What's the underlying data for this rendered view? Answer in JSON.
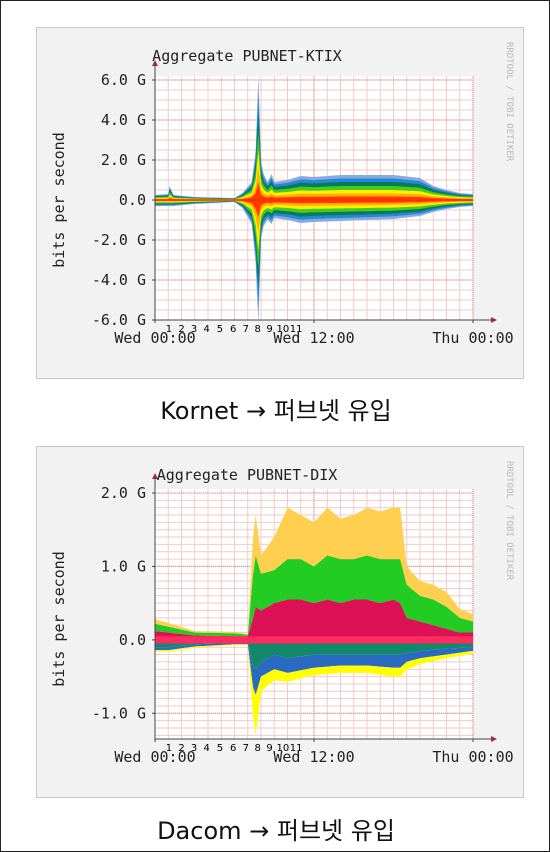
{
  "charts": [
    {
      "title": "Aggregate PUBNET-KTIX",
      "ylabel": "bits per second",
      "watermark": "RRDTOOL / TOBI OETIKER",
      "y_ticks": [
        {
          "v": 6,
          "label": "6.0 G"
        },
        {
          "v": 4,
          "label": "4.0 G"
        },
        {
          "v": 2,
          "label": "2.0 G"
        },
        {
          "v": 0,
          "label": "0.0"
        },
        {
          "v": -2,
          "label": "-2.0 G"
        },
        {
          "v": -4,
          "label": "-4.0 G"
        },
        {
          "v": -6,
          "label": "-6.0 G"
        }
      ],
      "x_ticks": [
        "Wed 00:00",
        "Wed 12:00",
        "Thu 00:00"
      ],
      "annotations": [
        "1",
        "2",
        "3",
        "4",
        "5",
        "6",
        "7",
        "8",
        "9",
        "10",
        "11"
      ],
      "caption": "Kornet → 퍼브넷 유입"
    },
    {
      "title": "Aggregate PUBNET-DIX",
      "ylabel": "bits per second",
      "watermark": "RRDTOOL / TOBI OETIKER",
      "y_ticks": [
        {
          "v": 2,
          "label": "2.0 G"
        },
        {
          "v": 1,
          "label": "1.0 G"
        },
        {
          "v": 0,
          "label": "0.0"
        },
        {
          "v": -1,
          "label": "-1.0 G"
        }
      ],
      "x_ticks": [
        "Wed 00:00",
        "Wed 12:00",
        "Thu 00:00"
      ],
      "annotations": [
        "1",
        "2",
        "3",
        "4",
        "5",
        "6",
        "7",
        "8",
        "9",
        "10",
        "11"
      ],
      "caption": "Dacom → 퍼브넷 유입"
    }
  ],
  "chart_data": [
    {
      "type": "area",
      "title": "Aggregate PUBNET-KTIX",
      "ylabel": "bits per second",
      "x_unit": "hours since Wed 00:00",
      "xlim": [
        0,
        24
      ],
      "ylim": [
        -6,
        6
      ],
      "y_unit": "G",
      "grid": true,
      "colors": [
        "#ff3a00",
        "#ffb000",
        "#ffee00",
        "#44cc22",
        "#0a7a55",
        "#2288dd",
        "#88aadd"
      ],
      "envelope": {
        "x": [
          0,
          1,
          1.1,
          1.4,
          3,
          6,
          6.6,
          7.3,
          7.6,
          7.8,
          8.0,
          8.2,
          8.5,
          8.8,
          9.0,
          10,
          11,
          12,
          14,
          16,
          18,
          20,
          21,
          22,
          23,
          24
        ],
        "top": [
          0.25,
          0.3,
          0.7,
          0.25,
          0.15,
          0.1,
          0.35,
          0.9,
          2.5,
          6.2,
          2.0,
          1.3,
          0.9,
          1.3,
          0.9,
          1.0,
          1.2,
          1.15,
          1.25,
          1.25,
          1.25,
          1.1,
          0.7,
          0.5,
          0.35,
          0.3
        ],
        "bottom": [
          -0.3,
          -0.3,
          -0.3,
          -0.3,
          -0.2,
          -0.1,
          -0.4,
          -1.2,
          -3.2,
          -6.2,
          -2.0,
          -1.3,
          -1.0,
          -1.2,
          -0.9,
          -1.0,
          -1.15,
          -1.1,
          -1.05,
          -1.0,
          -0.95,
          -0.8,
          -0.6,
          -0.45,
          -0.35,
          -0.3
        ]
      }
    },
    {
      "type": "area",
      "title": "Aggregate PUBNET-DIX",
      "ylabel": "bits per second",
      "x_unit": "hours since Wed 00:00",
      "xlim": [
        0,
        24
      ],
      "ylim": [
        -1.35,
        2.0
      ],
      "y_unit": "G",
      "grid": true,
      "colors": [
        "#dd1155",
        "#22cc22",
        "#ffd050",
        "#ffff00",
        "#128a6a",
        "#2a6ac0"
      ],
      "series_pos": [
        {
          "name": "layer-1",
          "x": [
            0,
            1,
            3,
            6,
            7,
            7.4,
            7.6,
            8,
            9,
            10,
            11,
            12,
            13,
            14,
            15,
            16,
            17,
            18,
            18.5,
            19,
            20,
            21,
            22,
            23,
            24
          ],
          "values": [
            0.12,
            0.1,
            0.06,
            0.05,
            0.05,
            0.3,
            0.45,
            0.4,
            0.5,
            0.55,
            0.55,
            0.5,
            0.55,
            0.5,
            0.55,
            0.55,
            0.5,
            0.55,
            0.5,
            0.3,
            0.25,
            0.2,
            0.15,
            0.1,
            0.1
          ]
        },
        {
          "name": "layer-2",
          "x": [
            0,
            1,
            3,
            6,
            7,
            7.4,
            7.6,
            8,
            9,
            10,
            11,
            12,
            13,
            14,
            15,
            16,
            17,
            18,
            18.5,
            19,
            20,
            21,
            22,
            23,
            24
          ],
          "values": [
            0.1,
            0.08,
            0.04,
            0.04,
            0.02,
            0.6,
            0.7,
            0.5,
            0.45,
            0.55,
            0.55,
            0.5,
            0.6,
            0.6,
            0.55,
            0.6,
            0.6,
            0.55,
            0.6,
            0.45,
            0.35,
            0.35,
            0.3,
            0.2,
            0.15
          ]
        },
        {
          "name": "layer-3",
          "x": [
            0,
            1,
            3,
            6,
            7,
            7.4,
            7.6,
            8,
            9,
            10,
            11,
            12,
            13,
            14,
            15,
            16,
            17,
            18,
            18.5,
            19,
            20,
            21,
            22,
            23,
            24
          ],
          "values": [
            0.06,
            0.05,
            0.02,
            0.02,
            0.01,
            0.5,
            0.55,
            0.25,
            0.45,
            0.7,
            0.6,
            0.6,
            0.65,
            0.55,
            0.6,
            0.65,
            0.65,
            0.7,
            0.7,
            0.25,
            0.2,
            0.2,
            0.2,
            0.12,
            0.1
          ]
        }
      ],
      "series_neg": [
        {
          "name": "layer-4",
          "x": [
            0,
            1,
            3,
            6,
            7,
            7.4,
            7.6,
            8,
            9,
            10,
            12,
            14,
            16,
            18,
            18.5,
            19,
            20,
            22,
            24
          ],
          "values": [
            -0.1,
            -0.1,
            -0.06,
            -0.04,
            -0.04,
            -0.35,
            -0.4,
            -0.3,
            -0.2,
            -0.25,
            -0.2,
            -0.2,
            -0.2,
            -0.2,
            -0.2,
            -0.18,
            -0.15,
            -0.12,
            -0.1
          ]
        },
        {
          "name": "layer-5",
          "x": [
            0,
            1,
            3,
            6,
            7,
            7.4,
            7.6,
            8,
            9,
            10,
            12,
            14,
            16,
            18,
            18.5,
            19,
            20,
            22,
            24
          ],
          "values": [
            -0.04,
            -0.04,
            -0.03,
            -0.02,
            -0.02,
            -0.3,
            -0.35,
            -0.2,
            -0.2,
            -0.2,
            -0.18,
            -0.15,
            -0.15,
            -0.18,
            -0.18,
            -0.12,
            -0.1,
            -0.08,
            -0.05
          ]
        },
        {
          "name": "layer-6",
          "x": [
            0,
            1,
            3,
            6,
            7,
            7.4,
            7.6,
            8,
            9,
            10,
            12,
            14,
            16,
            18,
            18.5,
            19,
            20,
            22,
            24
          ],
          "values": [
            -0.02,
            -0.02,
            -0.02,
            -0.01,
            -0.01,
            -0.4,
            -0.55,
            -0.2,
            -0.15,
            -0.12,
            -0.1,
            -0.1,
            -0.1,
            -0.12,
            -0.12,
            -0.1,
            -0.08,
            -0.05,
            -0.04
          ]
        }
      ]
    }
  ]
}
